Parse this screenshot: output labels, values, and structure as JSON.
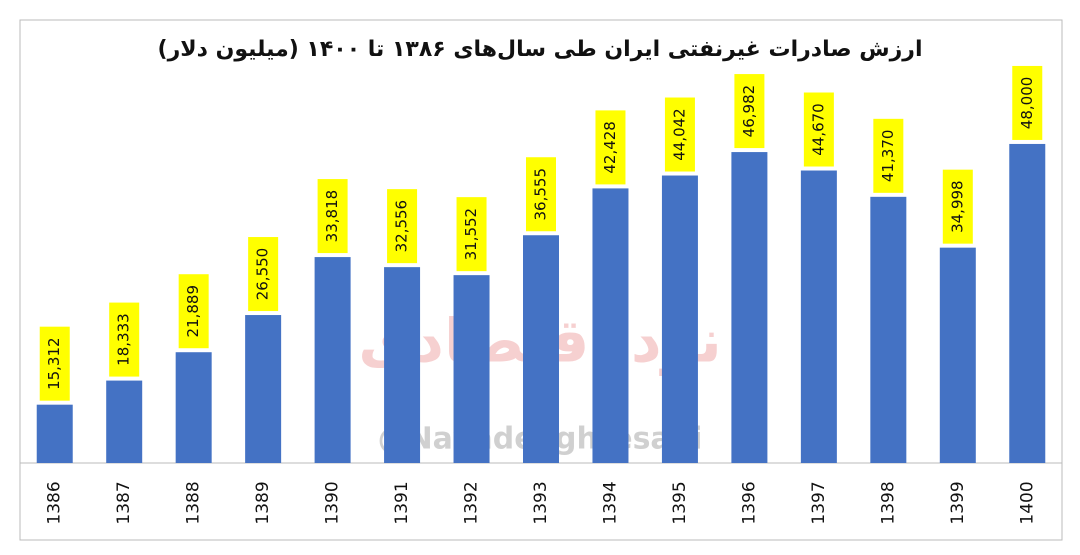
{
  "chart_data": {
    "type": "bar",
    "title": "ارزش صادرات غیرنفتی ایران طی سال‌های ۱۳۸۶ تا ۱۴۰۰ (میلیون دلار)",
    "watermark_logo": "نوِد اقتصادی",
    "watermark_handle": "@NavadeEghtesadi",
    "categories": [
      "1386",
      "1387",
      "1388",
      "1389",
      "1390",
      "1391",
      "1392",
      "1393",
      "1394",
      "1395",
      "1396",
      "1397",
      "1398",
      "1399",
      "1400"
    ],
    "values": [
      15312,
      18333,
      21889,
      26550,
      33818,
      32556,
      31552,
      36555,
      42428,
      44042,
      46982,
      44670,
      41370,
      34998,
      48000
    ],
    "value_labels": [
      "15,312",
      "18,333",
      "21,889",
      "26,550",
      "33,818",
      "32,556",
      "31,552",
      "36,555",
      "42,428",
      "44,042",
      "46,982",
      "44,670",
      "41,370",
      "34,998",
      "48,000"
    ],
    "color": "#4472c4",
    "label_background": "#ffff00",
    "ylim": [
      8000,
      50000
    ],
    "grid": false
  }
}
